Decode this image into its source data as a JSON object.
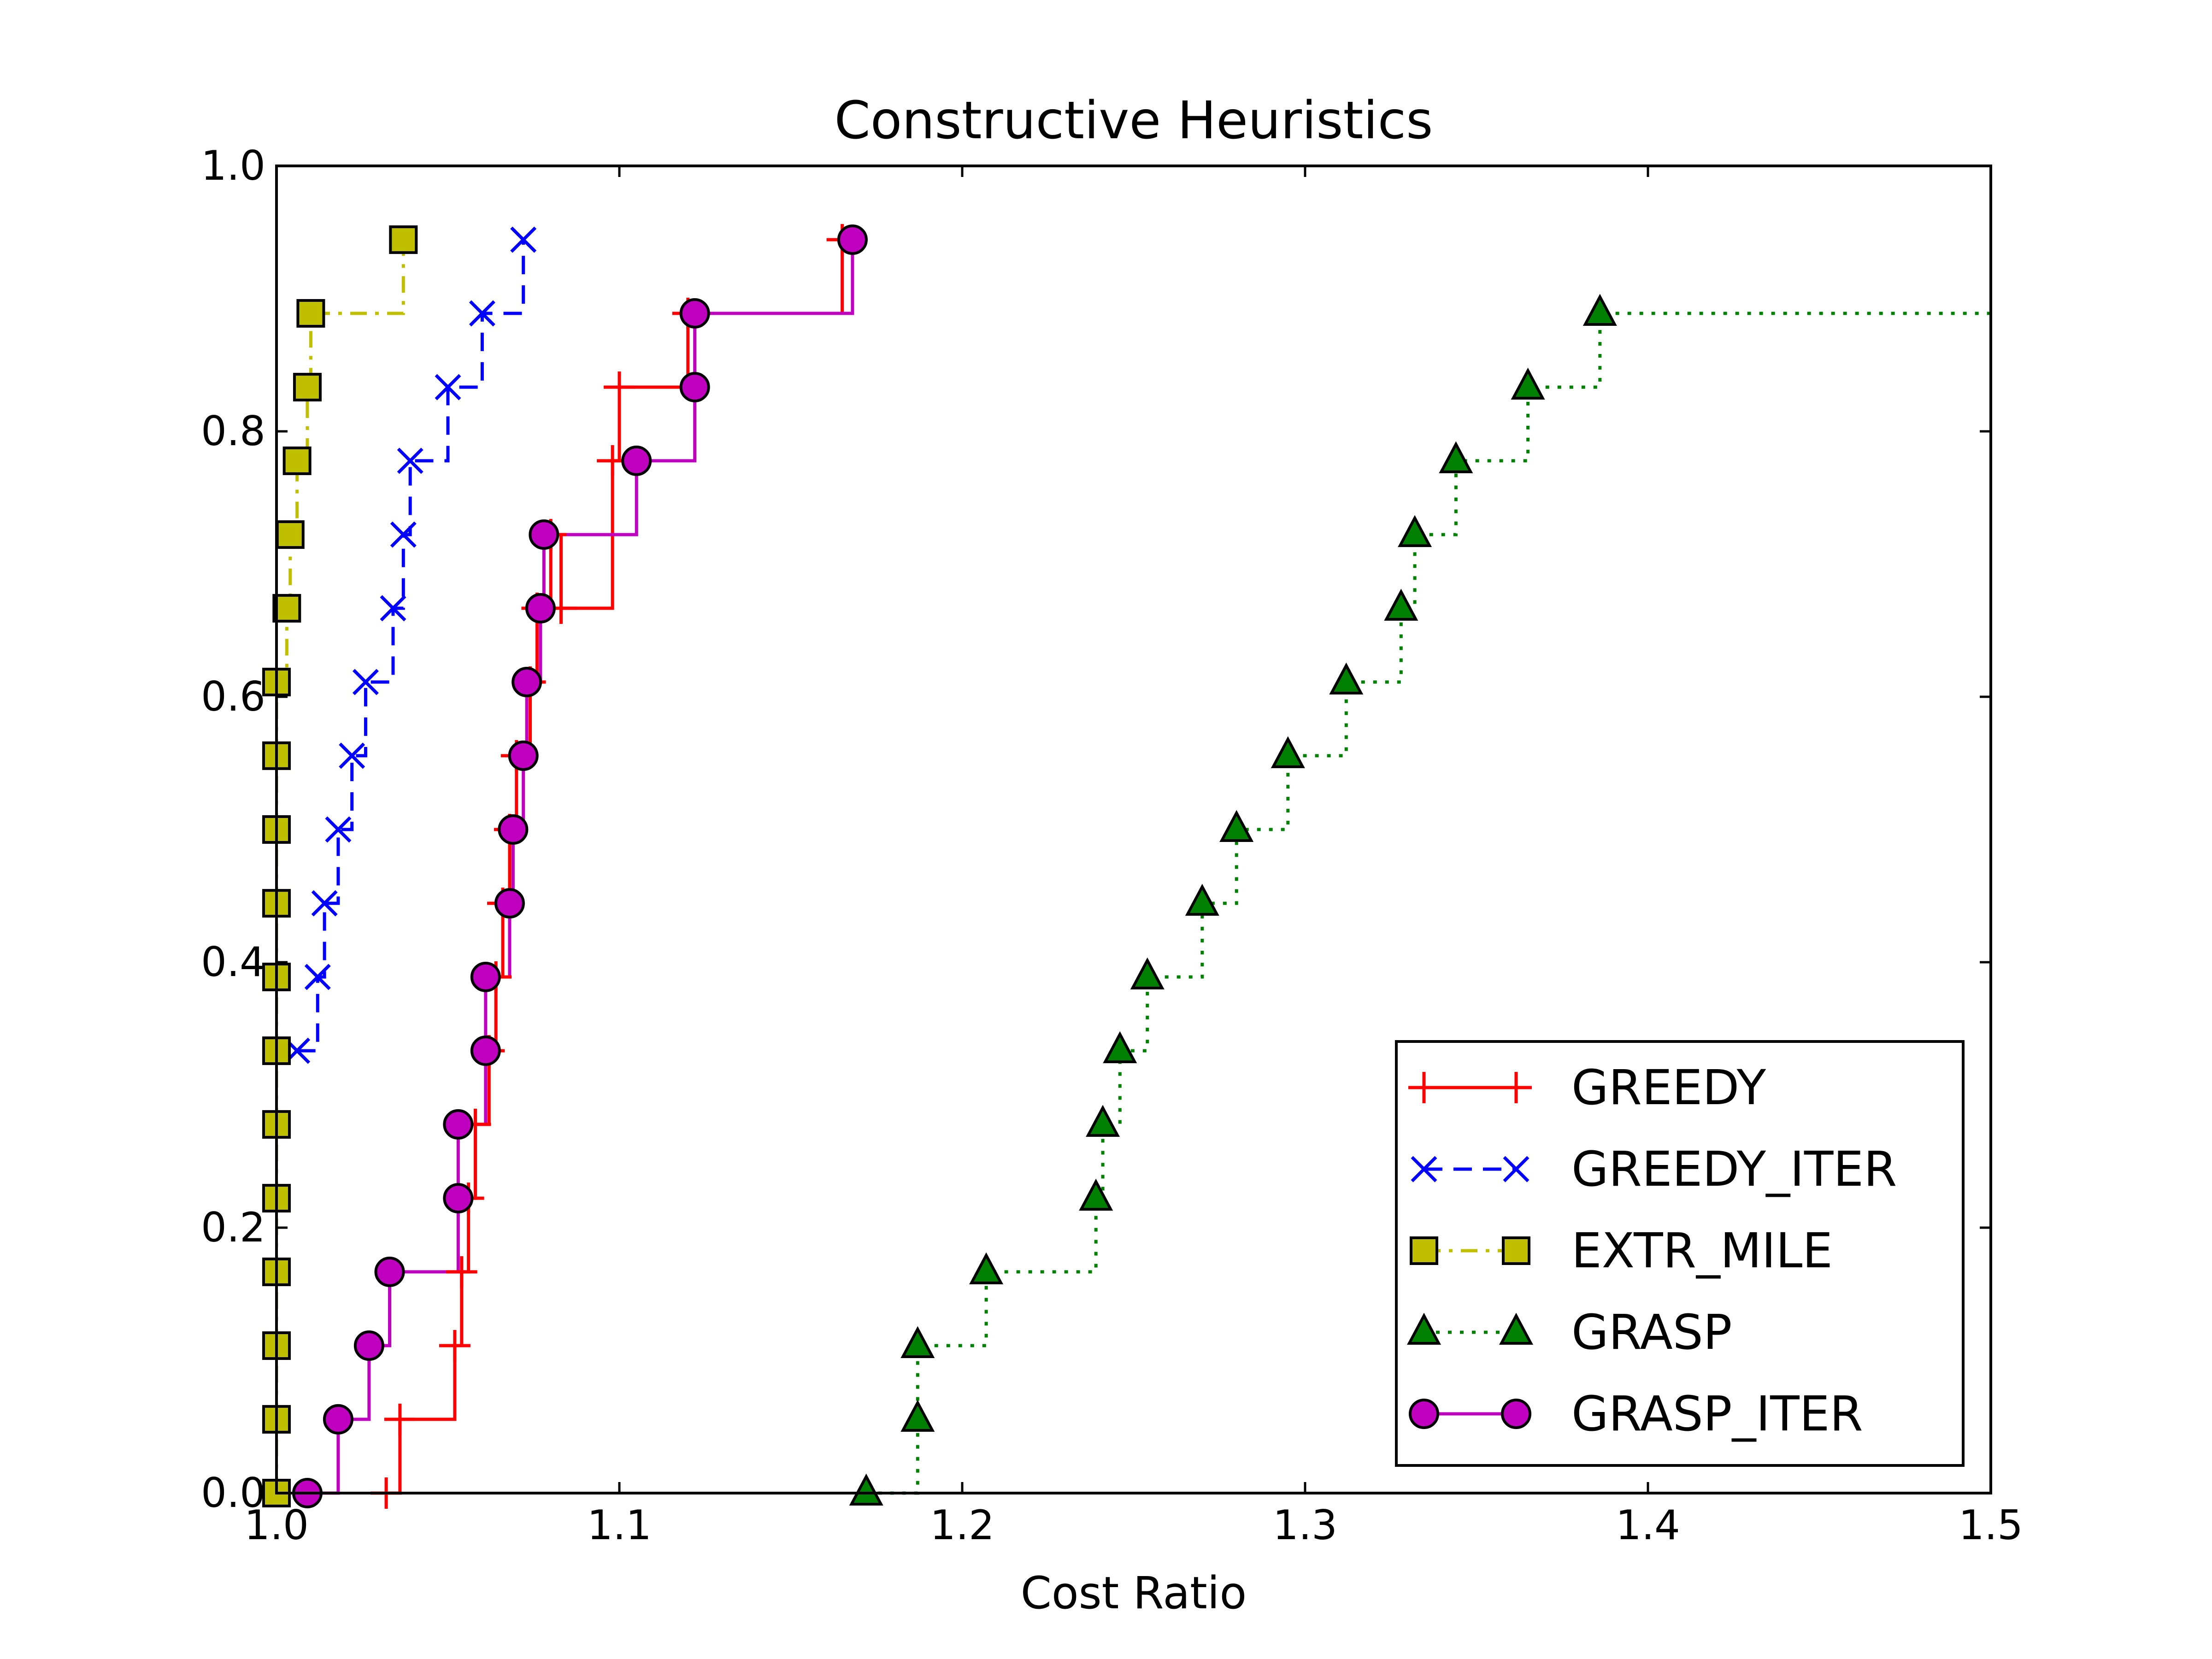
{
  "chart_data": {
    "type": "line",
    "title": "Constructive Heuristics",
    "xlabel": "Cost Ratio",
    "ylabel": "",
    "xlim": [
      1.0,
      1.5
    ],
    "ylim": [
      0.0,
      1.0
    ],
    "xticks": [
      "1.0",
      "1.1",
      "1.2",
      "1.3",
      "1.4",
      "1.5"
    ],
    "yticks": [
      "0.0",
      "0.2",
      "0.4",
      "0.6",
      "0.8",
      "1.0"
    ],
    "grid": false,
    "legend_position": "lower-right",
    "series": [
      {
        "name": "GREEDY",
        "color": "#ff0000",
        "marker": "plus",
        "linestyle": "solid",
        "x": [
          1.032,
          1.036,
          1.052,
          1.054,
          1.056,
          1.058,
          1.062,
          1.064,
          1.066,
          1.068,
          1.07,
          1.074,
          1.076,
          1.08,
          1.083,
          1.098,
          1.1,
          1.12,
          1.165
        ],
        "y": [
          0.0,
          0.0556,
          0.1111,
          0.1667,
          0.2222,
          0.2778,
          0.3333,
          0.3889,
          0.4444,
          0.5,
          0.5556,
          0.6111,
          0.6667,
          0.7222,
          0.6667,
          0.7778,
          0.8333,
          0.8889,
          0.9444
        ]
      },
      {
        "name": "GREEDY_ITER",
        "color": "#0000ff",
        "marker": "x",
        "linestyle": "dashed",
        "x": [
          1.006,
          1.012,
          1.014,
          1.018,
          1.022,
          1.026,
          1.034,
          1.037,
          1.039,
          1.05,
          1.06,
          1.072
        ],
        "y": [
          0.3333,
          0.3889,
          0.4444,
          0.5,
          0.5556,
          0.6111,
          0.6667,
          0.7222,
          0.7778,
          0.8333,
          0.8889,
          0.9444
        ]
      },
      {
        "name": "EXTR_MILE",
        "color": "#bfbf00",
        "marker": "square",
        "linestyle": "dashdot",
        "x": [
          1.0,
          1.0,
          1.0,
          1.0,
          1.0,
          1.0,
          1.0,
          1.0,
          1.0,
          1.0,
          1.0,
          1.0,
          1.003,
          1.004,
          1.006,
          1.009,
          1.01,
          1.037
        ],
        "y": [
          0.0,
          0.0556,
          0.1111,
          0.1667,
          0.2222,
          0.2778,
          0.3333,
          0.3889,
          0.4444,
          0.5,
          0.5556,
          0.6111,
          0.6667,
          0.7222,
          0.7778,
          0.8333,
          0.8889,
          0.9444
        ]
      },
      {
        "name": "GRASP",
        "color": "#008000",
        "marker": "triangle",
        "linestyle": "dotted",
        "x": [
          1.172,
          1.187,
          1.187,
          1.207,
          1.239,
          1.241,
          1.246,
          1.254,
          1.27,
          1.28,
          1.295,
          1.312,
          1.328,
          1.332,
          1.344,
          1.365,
          1.386
        ],
        "y": [
          0.0,
          0.0556,
          0.1111,
          0.1667,
          0.2222,
          0.2778,
          0.3333,
          0.3889,
          0.4444,
          0.5,
          0.5556,
          0.6111,
          0.6667,
          0.7222,
          0.7778,
          0.8333,
          0.8889
        ]
      },
      {
        "name": "GRASP_ITER",
        "color": "#bf00bf",
        "marker": "circle",
        "linestyle": "solid",
        "x": [
          1.009,
          1.018,
          1.027,
          1.033,
          1.053,
          1.053,
          1.061,
          1.061,
          1.068,
          1.069,
          1.072,
          1.073,
          1.077,
          1.078,
          1.105,
          1.122,
          1.122,
          1.168
        ],
        "y": [
          0.0,
          0.0556,
          0.1111,
          0.1667,
          0.2222,
          0.2778,
          0.3333,
          0.3889,
          0.4444,
          0.5,
          0.5556,
          0.6111,
          0.6667,
          0.7222,
          0.7778,
          0.8333,
          0.8889,
          0.9444
        ]
      }
    ]
  }
}
